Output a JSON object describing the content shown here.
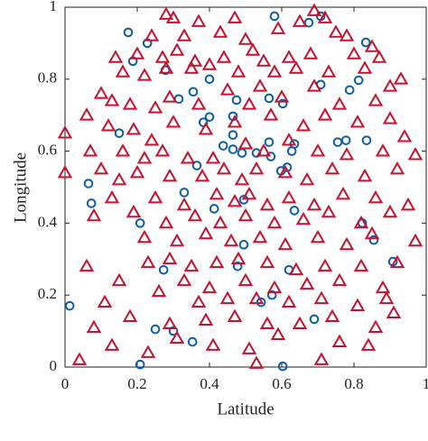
{
  "chart_data": {
    "type": "scatter",
    "xlabel": "Latitude",
    "ylabel": "Longitude",
    "xlim": [
      0,
      1
    ],
    "ylim": [
      0,
      1
    ],
    "xticks": [
      0,
      0.2,
      0.4,
      0.6,
      0.8,
      1
    ],
    "yticks": [
      0,
      0.2,
      0.4,
      0.6,
      0.8,
      1
    ],
    "box": true,
    "series": [
      {
        "marker": "circle",
        "color": "#0b5ea8",
        "x": [
          0.175,
          0.228,
          0.188,
          0.15,
          0.065,
          0.073,
          0.208,
          0.013,
          0.208,
          0.273,
          0.25,
          0.3,
          0.353,
          0.33,
          0.365,
          0.315,
          0.355,
          0.4,
          0.4,
          0.438,
          0.465,
          0.465,
          0.49,
          0.53,
          0.565,
          0.57,
          0.598,
          0.628,
          0.615,
          0.635,
          0.413,
          0.495,
          0.495,
          0.478,
          0.543,
          0.573,
          0.69,
          0.603,
          0.62,
          0.635,
          0.778,
          0.755,
          0.788,
          0.708,
          0.675,
          0.708,
          0.813,
          0.833,
          0.823,
          0.908,
          0.58,
          0.475,
          0.465,
          0.565,
          0.603,
          0.278,
          0.383,
          0.835,
          0.855
        ],
        "values": [
          0.93,
          0.9,
          0.85,
          0.65,
          0.51,
          0.455,
          0.4,
          0.17,
          0.007,
          0.27,
          0.105,
          0.1,
          0.07,
          0.485,
          0.56,
          0.745,
          0.765,
          0.8,
          0.695,
          0.615,
          0.645,
          0.605,
          0.595,
          0.595,
          0.625,
          0.585,
          0.545,
          0.6,
          0.555,
          0.62,
          0.44,
          0.465,
          0.34,
          0.28,
          0.18,
          0.2,
          0.133,
          0.002,
          0.27,
          0.435,
          0.63,
          0.625,
          0.77,
          0.785,
          0.957,
          0.975,
          0.797,
          0.902,
          0.4,
          0.293,
          0.975,
          0.742,
          0.697,
          0.747,
          0.732,
          0.825,
          0.68,
          0.63,
          0.353
        ]
      },
      {
        "marker": "triangle",
        "color": "#c4122f",
        "x": [
          0.28,
          0.3,
          0.37,
          0.47,
          0.69,
          0.72,
          0.65,
          0.24,
          0.33,
          0.43,
          0.5,
          0.59,
          0.75,
          0.78,
          0.85,
          0.14,
          0.2,
          0.27,
          0.31,
          0.36,
          0.44,
          0.52,
          0.55,
          0.62,
          0.68,
          0.8,
          0.87,
          0.1,
          0.16,
          0.22,
          0.28,
          0.35,
          0.4,
          0.48,
          0.58,
          0.64,
          0.73,
          0.83,
          0.9,
          0.93,
          0.06,
          0.13,
          0.18,
          0.25,
          0.29,
          0.37,
          0.45,
          0.54,
          0.6,
          0.69,
          0.76,
          0.86,
          0.9,
          0.0,
          0.12,
          0.19,
          0.24,
          0.3,
          0.39,
          0.47,
          0.51,
          0.57,
          0.66,
          0.72,
          0.81,
          0.94,
          0.07,
          0.16,
          0.22,
          0.27,
          0.34,
          0.41,
          0.5,
          0.55,
          0.62,
          0.7,
          0.78,
          0.88,
          0.97,
          0.0,
          0.1,
          0.15,
          0.2,
          0.29,
          0.38,
          0.44,
          0.49,
          0.53,
          0.61,
          0.67,
          0.74,
          0.83,
          0.92,
          0.08,
          0.13,
          0.25,
          0.33,
          0.42,
          0.47,
          0.51,
          0.56,
          0.62,
          0.69,
          0.77,
          0.86,
          0.95,
          0.19,
          0.28,
          0.36,
          0.43,
          0.5,
          0.58,
          0.66,
          0.73,
          0.82,
          0.9,
          0.22,
          0.31,
          0.39,
          0.46,
          0.54,
          0.61,
          0.7,
          0.78,
          0.85,
          0.97,
          0.06,
          0.23,
          0.29,
          0.35,
          0.42,
          0.48,
          0.56,
          0.64,
          0.72,
          0.82,
          0.92,
          0.15,
          0.33,
          0.4,
          0.5,
          0.58,
          0.67,
          0.76,
          0.88,
          0.11,
          0.26,
          0.37,
          0.45,
          0.53,
          0.62,
          0.71,
          0.81,
          0.89,
          0.08,
          0.18,
          0.29,
          0.39,
          0.47,
          0.56,
          0.65,
          0.74,
          0.86,
          0.91,
          0.04,
          0.13,
          0.23,
          0.31,
          0.41,
          0.51,
          0.59,
          0.71,
          0.76,
          0.84,
          0.53
        ],
        "values": [
          0.98,
          0.97,
          0.96,
          0.97,
          0.99,
          0.97,
          0.96,
          0.92,
          0.92,
          0.93,
          0.91,
          0.94,
          0.93,
          0.92,
          0.89,
          0.86,
          0.87,
          0.86,
          0.88,
          0.85,
          0.86,
          0.88,
          0.85,
          0.86,
          0.87,
          0.87,
          0.86,
          0.76,
          0.82,
          0.81,
          0.83,
          0.83,
          0.84,
          0.82,
          0.82,
          0.83,
          0.82,
          0.83,
          0.78,
          0.8,
          0.7,
          0.74,
          0.73,
          0.72,
          0.75,
          0.73,
          0.77,
          0.78,
          0.75,
          0.78,
          0.73,
          0.74,
          0.69,
          0.65,
          0.67,
          0.66,
          0.63,
          0.68,
          0.66,
          0.68,
          0.73,
          0.7,
          0.67,
          0.7,
          0.68,
          0.64,
          0.6,
          0.6,
          0.58,
          0.6,
          0.58,
          0.58,
          0.62,
          0.6,
          0.63,
          0.6,
          0.59,
          0.6,
          0.59,
          0.54,
          0.55,
          0.52,
          0.54,
          0.53,
          0.53,
          0.55,
          0.52,
          0.55,
          0.54,
          0.52,
          0.55,
          0.53,
          0.55,
          0.42,
          0.47,
          0.47,
          0.45,
          0.48,
          0.46,
          0.48,
          0.45,
          0.47,
          0.45,
          0.48,
          0.47,
          0.45,
          0.43,
          0.4,
          0.42,
          0.4,
          0.42,
          0.4,
          0.41,
          0.43,
          0.4,
          0.43,
          0.36,
          0.35,
          0.37,
          0.35,
          0.36,
          0.34,
          0.36,
          0.34,
          0.37,
          0.35,
          0.28,
          0.29,
          0.3,
          0.28,
          0.29,
          0.3,
          0.29,
          0.27,
          0.28,
          0.28,
          0.29,
          0.24,
          0.24,
          0.22,
          0.24,
          0.22,
          0.23,
          0.24,
          0.22,
          0.18,
          0.21,
          0.18,
          0.19,
          0.19,
          0.18,
          0.19,
          0.17,
          0.19,
          0.11,
          0.14,
          0.12,
          0.13,
          0.14,
          0.12,
          0.12,
          0.14,
          0.11,
          0.15,
          0.02,
          0.06,
          0.04,
          0.08,
          0.06,
          0.05,
          0.09,
          0.02,
          0.07,
          0.06,
          0.01
        ]
      }
    ]
  }
}
